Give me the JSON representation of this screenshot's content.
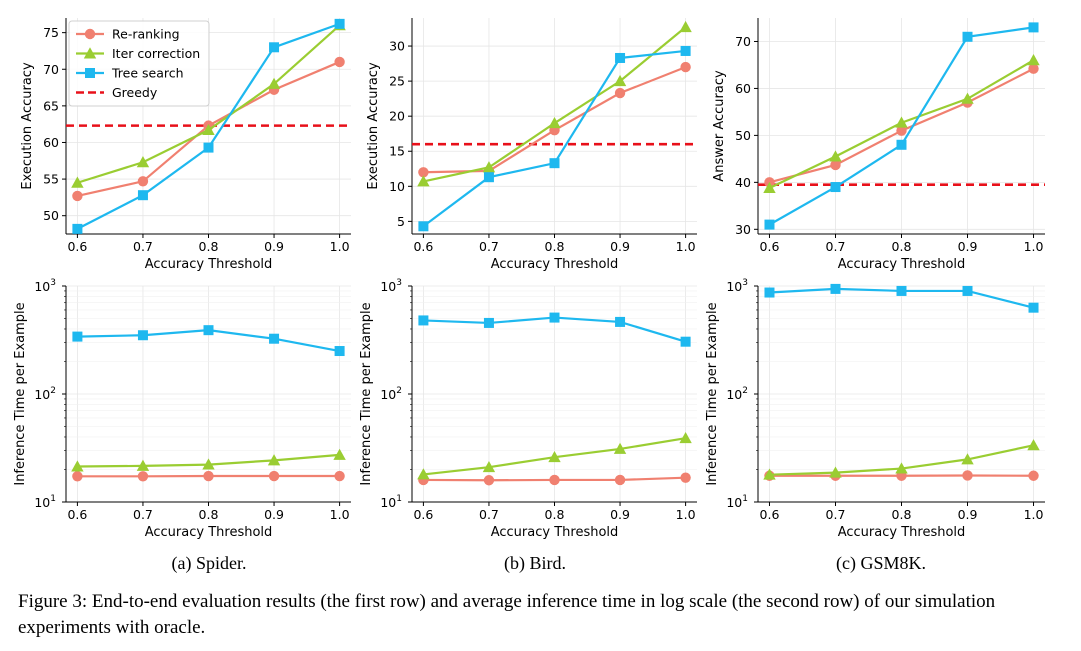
{
  "chart_data": [
    {
      "type": "line",
      "panel": "spider-accuracy",
      "scale": "linear",
      "xlabel": "Accuracy Threshold",
      "ylabel": "Execution Accuracy",
      "x": [
        0.6,
        0.7,
        0.8,
        0.9,
        1.0
      ],
      "x_ticks": [
        "0.6",
        "0.7",
        "0.8",
        "0.9",
        "1.0"
      ],
      "ylim": [
        47.5,
        77
      ],
      "y_ticks": [
        50,
        55,
        60,
        65,
        70,
        75
      ],
      "grid": true,
      "legend": "top-left",
      "series": [
        {
          "name": "Re-ranking",
          "values": [
            52.7,
            54.7,
            62.3,
            67.2,
            71.0
          ]
        },
        {
          "name": "Iter correction",
          "values": [
            54.5,
            57.3,
            61.7,
            68.0,
            76.0
          ]
        },
        {
          "name": "Tree search",
          "values": [
            48.2,
            52.8,
            59.3,
            73.0,
            76.2
          ]
        }
      ],
      "baseline": {
        "name": "Greedy",
        "value": 62.3
      }
    },
    {
      "type": "line",
      "panel": "bird-accuracy",
      "scale": "linear",
      "xlabel": "Accuracy Threshold",
      "ylabel": "Execution Accuracy",
      "x": [
        0.6,
        0.7,
        0.8,
        0.9,
        1.0
      ],
      "x_ticks": [
        "0.6",
        "0.7",
        "0.8",
        "0.9",
        "1.0"
      ],
      "ylim": [
        3.2,
        34
      ],
      "y_ticks": [
        5,
        10,
        15,
        20,
        25,
        30
      ],
      "grid": true,
      "series": [
        {
          "name": "Re-ranking",
          "values": [
            12.0,
            12.2,
            18.0,
            23.3,
            27.0
          ]
        },
        {
          "name": "Iter correction",
          "values": [
            10.7,
            12.7,
            19.0,
            25.0,
            32.7
          ]
        },
        {
          "name": "Tree search",
          "values": [
            4.3,
            11.3,
            13.3,
            28.3,
            29.3
          ]
        }
      ],
      "baseline": {
        "name": "Greedy",
        "value": 16.0
      }
    },
    {
      "type": "line",
      "panel": "gsm8k-accuracy",
      "scale": "linear",
      "xlabel": "Accuracy Threshold",
      "ylabel": "Answer Accuracy",
      "x": [
        0.6,
        0.7,
        0.8,
        0.9,
        1.0
      ],
      "x_ticks": [
        "0.6",
        "0.7",
        "0.8",
        "0.9",
        "1.0"
      ],
      "ylim": [
        29,
        75
      ],
      "y_ticks": [
        30,
        40,
        50,
        60,
        70
      ],
      "grid": true,
      "series": [
        {
          "name": "Re-ranking",
          "values": [
            40.0,
            43.7,
            51.0,
            57.0,
            64.2
          ]
        },
        {
          "name": "Iter correction",
          "values": [
            38.8,
            45.5,
            52.7,
            57.8,
            66.0
          ]
        },
        {
          "name": "Tree search",
          "values": [
            31.0,
            39.0,
            48.0,
            71.0,
            73.0
          ]
        }
      ],
      "baseline": {
        "name": "Greedy",
        "value": 39.5
      }
    },
    {
      "type": "line",
      "panel": "spider-time",
      "scale": "log",
      "xlabel": "Accuracy Threshold",
      "ylabel": "Inference Time per Example",
      "x": [
        0.6,
        0.7,
        0.8,
        0.9,
        1.0
      ],
      "x_ticks": [
        "0.6",
        "0.7",
        "0.8",
        "0.9",
        "1.0"
      ],
      "ylim": [
        10,
        1000
      ],
      "y_ticks": [
        "10",
        "100",
        "1000"
      ],
      "grid": true,
      "series": [
        {
          "name": "Re-ranking",
          "values": [
            17.3,
            17.3,
            17.4,
            17.4,
            17.4
          ]
        },
        {
          "name": "Iter correction",
          "values": [
            21.3,
            21.6,
            22.2,
            24.3,
            27.3
          ]
        },
        {
          "name": "Tree search",
          "values": [
            340,
            350,
            390,
            325,
            250
          ]
        }
      ]
    },
    {
      "type": "line",
      "panel": "bird-time",
      "scale": "log",
      "xlabel": "Accuracy Threshold",
      "ylabel": "Inference Time per Example",
      "x": [
        0.6,
        0.7,
        0.8,
        0.9,
        1.0
      ],
      "x_ticks": [
        "0.6",
        "0.7",
        "0.8",
        "0.9",
        "1.0"
      ],
      "ylim": [
        10,
        1000
      ],
      "y_ticks": [
        "10",
        "100",
        "1000"
      ],
      "grid": true,
      "series": [
        {
          "name": "Re-ranking",
          "values": [
            16.0,
            15.9,
            16.0,
            16.0,
            16.8
          ]
        },
        {
          "name": "Iter correction",
          "values": [
            18.0,
            21.0,
            26.0,
            31.0,
            39.0
          ]
        },
        {
          "name": "Tree search",
          "values": [
            480,
            455,
            510,
            465,
            305
          ]
        }
      ]
    },
    {
      "type": "line",
      "panel": "gsm8k-time",
      "scale": "log",
      "xlabel": "Accuracy Threshold",
      "ylabel": "Inference Time per Example",
      "x": [
        0.6,
        0.7,
        0.8,
        0.9,
        1.0
      ],
      "x_ticks": [
        "0.6",
        "0.7",
        "0.8",
        "0.9",
        "1.0"
      ],
      "ylim": [
        10,
        1000
      ],
      "y_ticks": [
        "10",
        "100",
        "1000"
      ],
      "grid": true,
      "series": [
        {
          "name": "Re-ranking",
          "values": [
            17.5,
            17.5,
            17.5,
            17.6,
            17.5
          ]
        },
        {
          "name": "Iter correction",
          "values": [
            17.9,
            18.7,
            20.4,
            24.8,
            33.5
          ]
        },
        {
          "name": "Tree search",
          "values": [
            870,
            940,
            900,
            900,
            630
          ]
        }
      ]
    }
  ],
  "legend": {
    "items": [
      "Re-ranking",
      "Iter correction",
      "Tree search",
      "Greedy"
    ]
  },
  "colors": {
    "Re-ranking": "#f08070",
    "Iter correction": "#9acd32",
    "Tree search": "#1eb8ef",
    "Greedy": "#e8101a"
  },
  "subcaptions": [
    "(a) Spider.",
    "(b) Bird.",
    "(c) GSM8K."
  ],
  "caption": "Figure 3: End-to-end evaluation results (the first row) and average inference time in log scale (the second row) of our simulation experiments with oracle."
}
